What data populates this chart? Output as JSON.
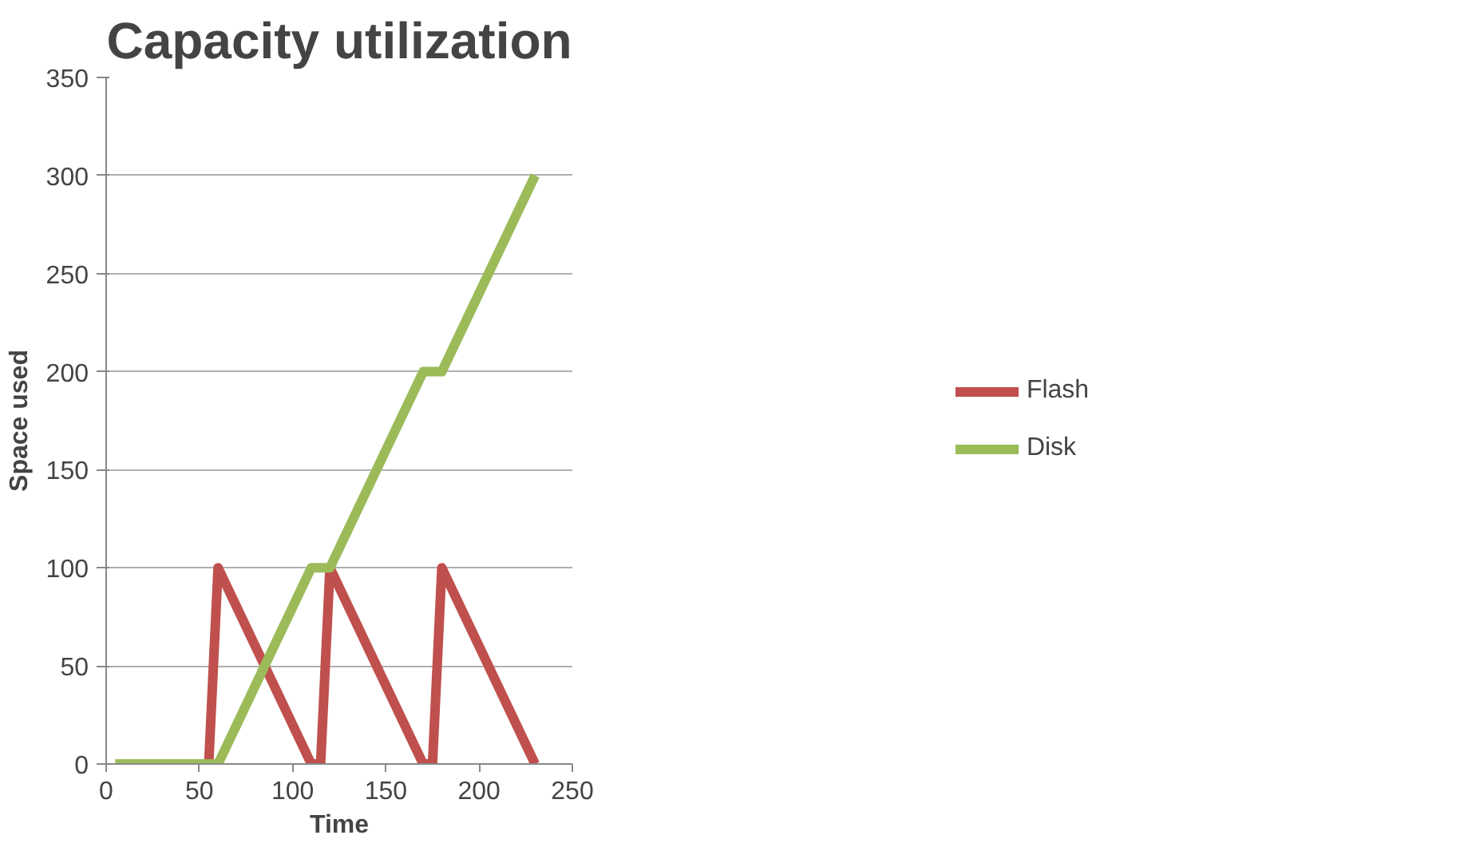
{
  "chart_data": {
    "type": "line",
    "title": "Capacity utilization",
    "xlabel": "Time",
    "ylabel": "Space used",
    "xlim": [
      0,
      250
    ],
    "xticks": [
      0,
      50,
      100,
      150,
      200,
      250
    ],
    "ylim": [
      0,
      350
    ],
    "yticks": [
      0,
      50,
      100,
      150,
      200,
      250,
      300,
      350
    ],
    "grid": "y",
    "legend": "right",
    "marker": "none",
    "line_style": "solid",
    "series": [
      {
        "name": "Flash",
        "color": "#c0504d",
        "x": [
          5,
          55,
          60,
          110,
          115,
          120,
          170,
          175,
          180,
          230
        ],
        "values": [
          0,
          0,
          100,
          0,
          0,
          100,
          0,
          0,
          100,
          0
        ]
      },
      {
        "name": "Disk",
        "color": "#9bbb59",
        "x": [
          5,
          60,
          110,
          120,
          170,
          180,
          230
        ],
        "values": [
          0,
          0,
          100,
          100,
          200,
          200,
          300
        ]
      }
    ]
  }
}
